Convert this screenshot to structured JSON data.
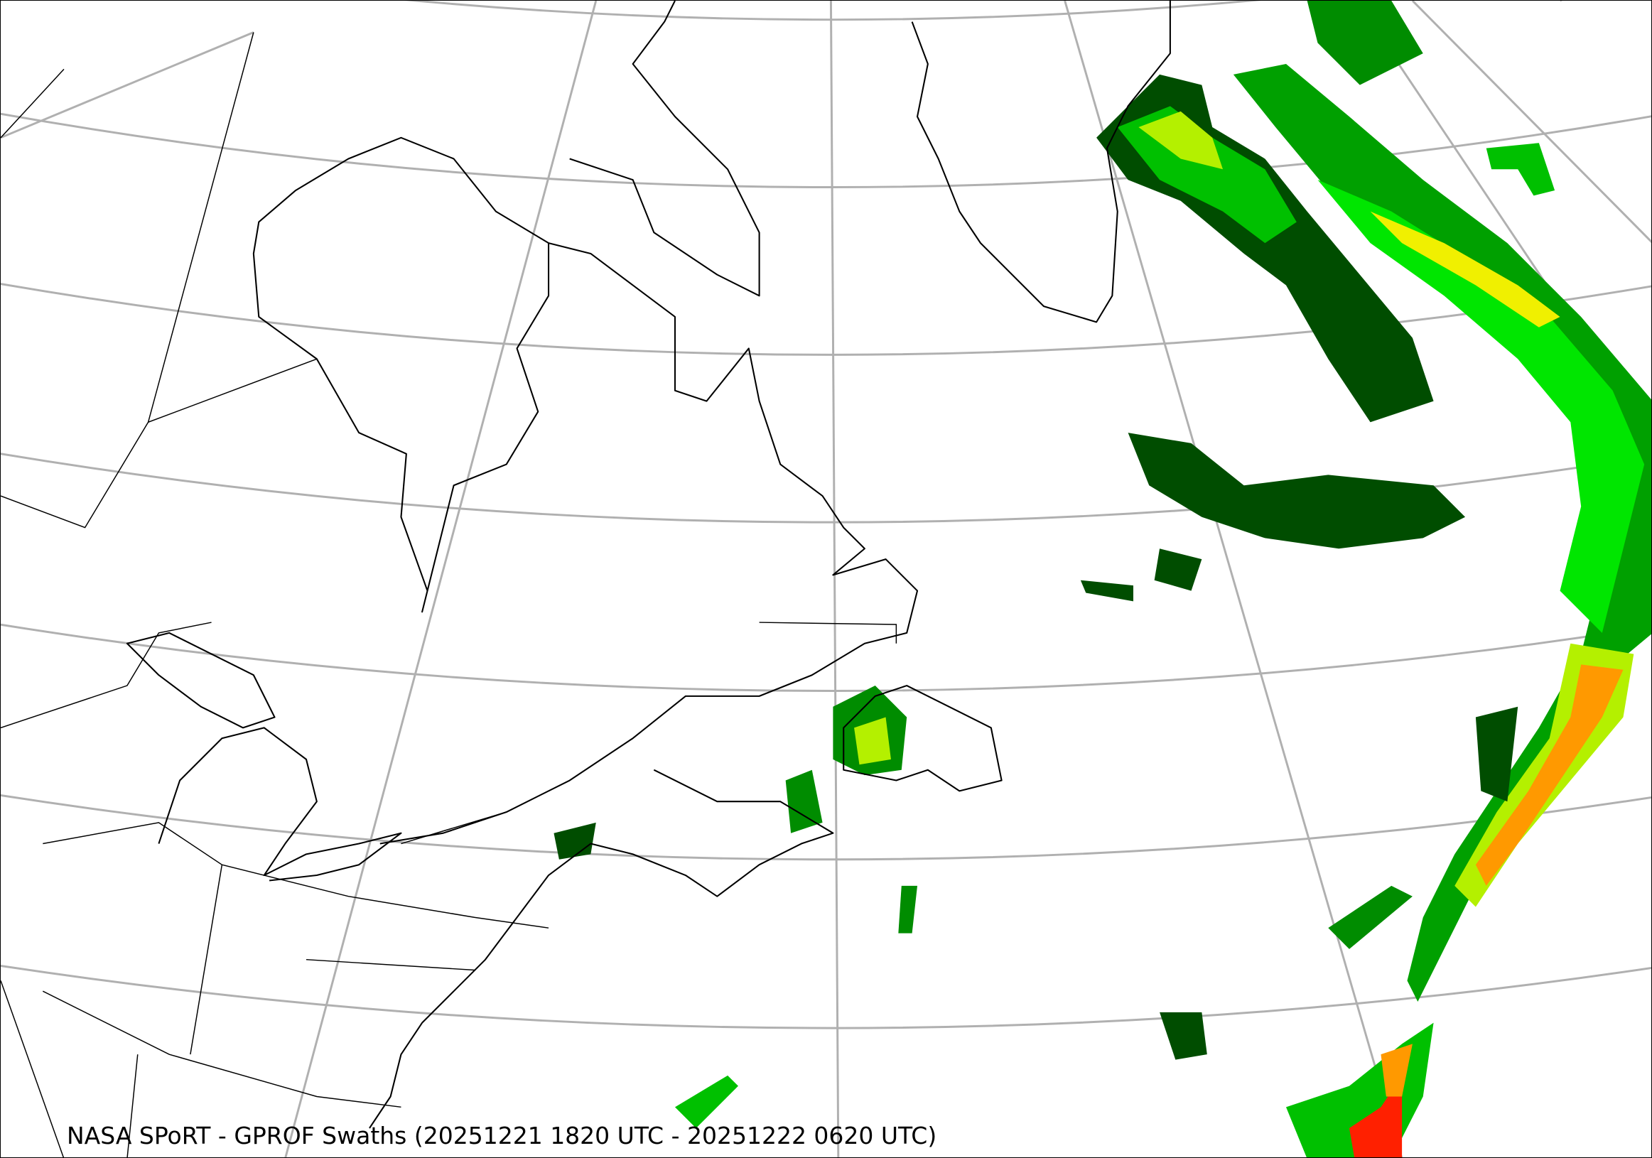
{
  "caption": "NASA SPoRT - GPROF Swaths (20251221 1820 UTC - 20251222 0620 UTC)",
  "map": {
    "product": "GPROF precipitation swaths",
    "region": "Northeastern North America and North Atlantic",
    "colors": {
      "light_precip": "#004d00",
      "moderate_precip": "#008c00",
      "heavier_precip": "#00e600",
      "yellow_green": "#b4f000",
      "yellow": "#f0f000",
      "orange": "#ff9900",
      "red": "#ff2000",
      "gridline": "#b0b0b0",
      "coastline": "#000000"
    },
    "gridlines": true
  }
}
